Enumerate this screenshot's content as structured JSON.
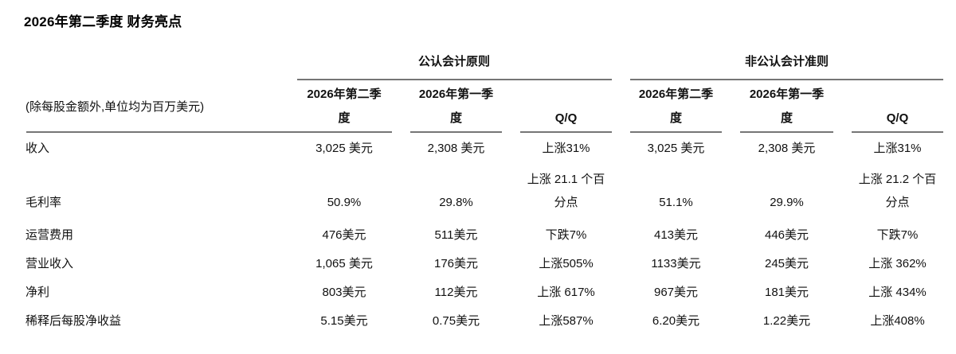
{
  "page": {
    "title": "2026年第二季度 财务亮点"
  },
  "table": {
    "unit_note": "(除每股金额外,单位均为百万美元)",
    "groups": {
      "gaap": "公认会计原则",
      "non_gaap": "非公认会计准则"
    },
    "columns": {
      "q2": "2026年第二季度",
      "q1": "2026年第一季度",
      "qq": "Q/Q"
    },
    "line_color": "#757575",
    "rows": [
      {
        "label": "收入",
        "gaap": {
          "q2": "3,025 美元",
          "q1": "2,308 美元",
          "qq": "上涨31%"
        },
        "non_gaap": {
          "q2": "3,025 美元",
          "q1": "2,308 美元",
          "qq": "上涨31%"
        }
      },
      {
        "label": "毛利率",
        "gaap": {
          "q2": "50.9%",
          "q1": "29.8%",
          "qq": "上涨 21.1 个百分点"
        },
        "non_gaap": {
          "q2": "51.1%",
          "q1": "29.9%",
          "qq": "上涨 21.2 个百分点"
        }
      },
      {
        "label": "运营费用",
        "gaap": {
          "q2": "476美元",
          "q1": "511美元",
          "qq": "下跌7%"
        },
        "non_gaap": {
          "q2": "413美元",
          "q1": "446美元",
          "qq": "下跌7%"
        }
      },
      {
        "label": "营业收入",
        "gaap": {
          "q2": "1,065 美元",
          "q1": "176美元",
          "qq": "上涨505%"
        },
        "non_gaap": {
          "q2": "1133美元",
          "q1": "245美元",
          "qq": "上涨 362%"
        }
      },
      {
        "label": "净利",
        "gaap": {
          "q2": "803美元",
          "q1": "112美元",
          "qq": "上涨 617%"
        },
        "non_gaap": {
          "q2": "967美元",
          "q1": "181美元",
          "qq": "上涨 434%"
        }
      },
      {
        "label": "稀释后每股净收益",
        "gaap": {
          "q2": "5.15美元",
          "q1": "0.75美元",
          "qq": "上涨587%"
        },
        "non_gaap": {
          "q2": "6.20美元",
          "q1": "1.22美元",
          "qq": "上涨408%"
        }
      }
    ]
  }
}
